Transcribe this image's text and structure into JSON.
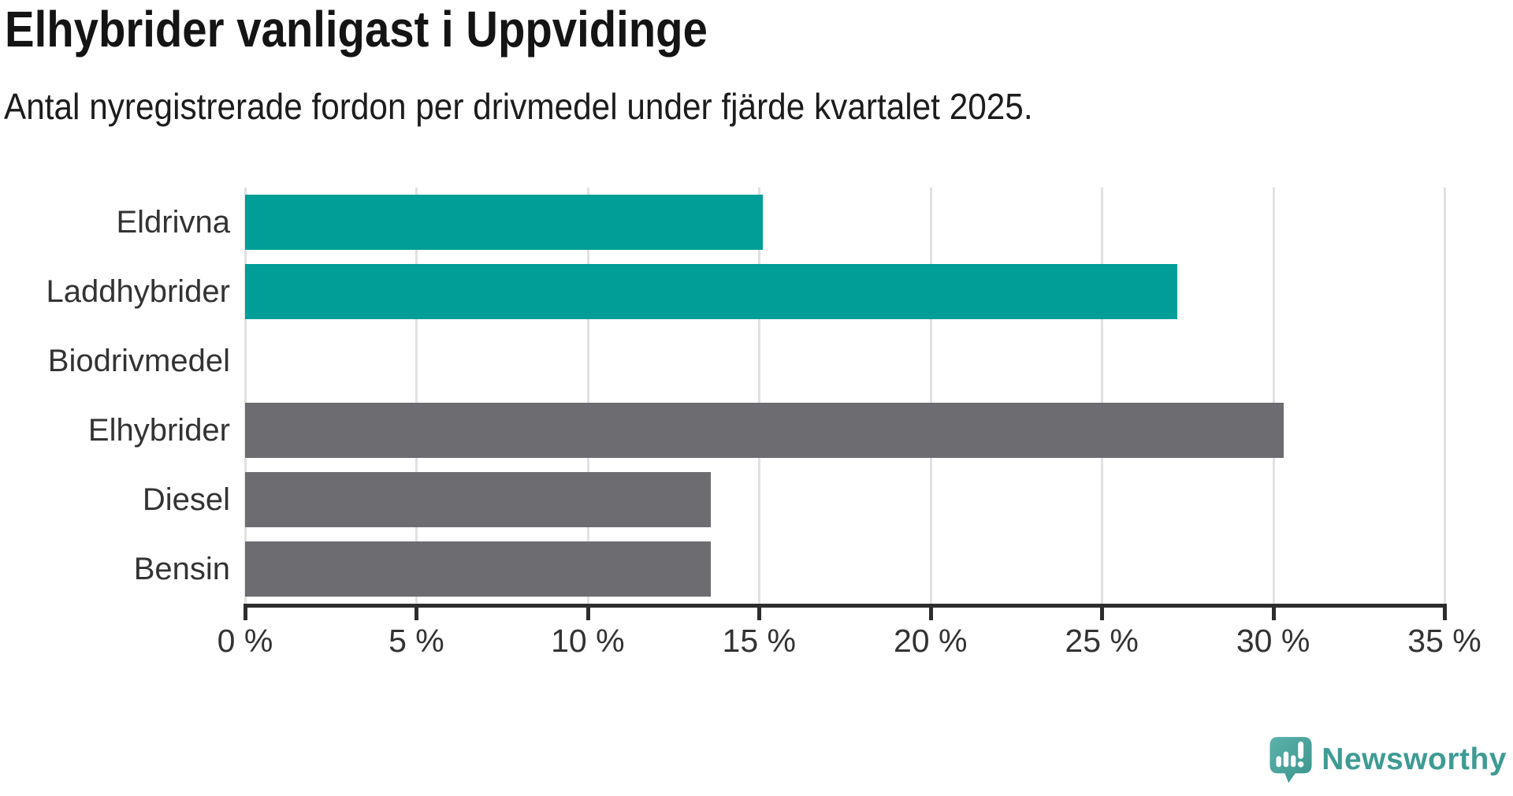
{
  "title": "Elhybrider vanligast i Uppvidinge",
  "subtitle": "Antal nyregistrerade fordon per drivmedel under fjärde kvartalet 2025.",
  "chart_data": {
    "type": "bar",
    "orientation": "horizontal",
    "title": "Elhybrider vanligast i Uppvidinge",
    "subtitle": "Antal nyregistrerade fordon per drivmedel under fjärde kvartalet 2025.",
    "categories": [
      "Eldrivna",
      "Laddhybrider",
      "Biodrivmedel",
      "Elhybrider",
      "Diesel",
      "Bensin"
    ],
    "values": [
      15.1,
      27.2,
      0,
      30.3,
      13.6,
      13.6
    ],
    "unit": "%",
    "bar_colors": [
      "#009e97",
      "#009e97",
      "#009e97",
      "#6c6c71",
      "#6c6c71",
      "#6c6c71"
    ],
    "xlim": [
      0,
      35
    ],
    "x_ticks": [
      "0 %",
      "5 %",
      "10 %",
      "15 %",
      "20 %",
      "25 %",
      "30 %",
      "35 %"
    ],
    "grid": true,
    "legend": false,
    "gridline_color": "#e1e1e1",
    "axis_color": "#2d2d2d"
  },
  "branding": {
    "logo_text": "Newsworthy",
    "logo_icon": "newsworthy-speech-bubble-bar-chart-icon",
    "logo_text_color": "#3e9b94",
    "logo_icon_color": "#4aa7a0"
  }
}
